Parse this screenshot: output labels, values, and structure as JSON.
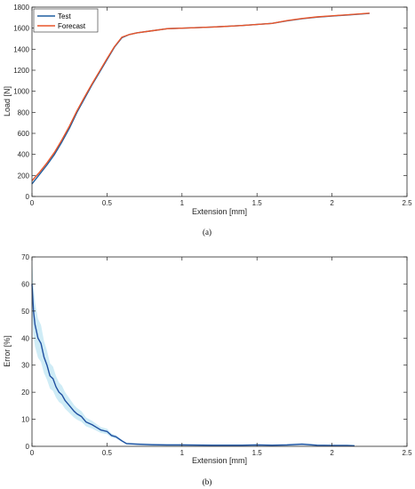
{
  "chart_data": [
    {
      "type": "line",
      "caption": "(a)",
      "xlabel": "Extension [mm]",
      "ylabel": "Load [N]",
      "xlim": [
        0,
        2.5
      ],
      "ylim": [
        0,
        1800
      ],
      "xticks": [
        "0",
        "0.5",
        "1",
        "1.5",
        "2",
        "2.5"
      ],
      "yticks": [
        "0",
        "200",
        "400",
        "600",
        "800",
        "1000",
        "1200",
        "1400",
        "1600",
        "1800"
      ],
      "legend_position": "top-left",
      "grid": false,
      "series": [
        {
          "name": "Test",
          "color": "#1f5fa0",
          "x": [
            0,
            0.05,
            0.1,
            0.15,
            0.2,
            0.25,
            0.3,
            0.35,
            0.4,
            0.45,
            0.5,
            0.55,
            0.6,
            0.65,
            0.7,
            0.8,
            0.9,
            1.0,
            1.2,
            1.4,
            1.6,
            1.7,
            1.8,
            1.9,
            2.0,
            2.1,
            2.2,
            2.25
          ],
          "y": [
            120,
            210,
            300,
            400,
            520,
            650,
            800,
            930,
            1060,
            1180,
            1300,
            1420,
            1510,
            1540,
            1555,
            1575,
            1595,
            1600,
            1610,
            1625,
            1645,
            1670,
            1690,
            1705,
            1715,
            1725,
            1735,
            1740
          ]
        },
        {
          "name": "Forecast",
          "color": "#e8552a",
          "x": [
            0,
            0.05,
            0.1,
            0.15,
            0.2,
            0.25,
            0.3,
            0.35,
            0.4,
            0.45,
            0.5,
            0.55,
            0.6,
            0.65,
            0.7,
            0.8,
            0.9,
            1.0,
            1.2,
            1.4,
            1.6,
            1.7,
            1.8,
            1.9,
            2.0,
            2.1,
            2.2,
            2.25
          ],
          "y": [
            150,
            230,
            320,
            420,
            540,
            670,
            815,
            945,
            1070,
            1190,
            1310,
            1425,
            1515,
            1540,
            1555,
            1575,
            1595,
            1600,
            1610,
            1625,
            1645,
            1672,
            1692,
            1707,
            1717,
            1727,
            1737,
            1742
          ]
        }
      ]
    },
    {
      "type": "line",
      "caption": "(b)",
      "xlabel": "Extension [mm]",
      "ylabel": "Error [%]",
      "xlim": [
        0,
        2.5
      ],
      "ylim": [
        0,
        70
      ],
      "xticks": [
        "0",
        "0.5",
        "1",
        "1.5",
        "2",
        "2.5"
      ],
      "yticks": [
        "0",
        "10",
        "20",
        "30",
        "40",
        "50",
        "60",
        "70"
      ],
      "grid": false,
      "series": [
        {
          "color": "#1f4fa0",
          "band_color": "#a8dcef",
          "x": [
            0,
            0.01,
            0.02,
            0.04,
            0.06,
            0.08,
            0.1,
            0.12,
            0.14,
            0.16,
            0.18,
            0.2,
            0.22,
            0.25,
            0.28,
            0.3,
            0.33,
            0.36,
            0.4,
            0.43,
            0.46,
            0.5,
            0.53,
            0.56,
            0.6,
            0.63,
            0.7,
            0.8,
            0.9,
            1.0,
            1.2,
            1.4,
            1.5,
            1.6,
            1.7,
            1.8,
            1.9,
            2.0,
            2.1,
            2.15
          ],
          "y": [
            60,
            50,
            45,
            40,
            38,
            33,
            30,
            26,
            25,
            22,
            20,
            19,
            17,
            15,
            13,
            12,
            11,
            9,
            8,
            7,
            6,
            5.5,
            4,
            3.5,
            2,
            1,
            0.8,
            0.6,
            0.5,
            0.5,
            0.4,
            0.4,
            0.5,
            0.4,
            0.5,
            0.8,
            0.4,
            0.3,
            0.3,
            0.2
          ]
        }
      ]
    }
  ]
}
